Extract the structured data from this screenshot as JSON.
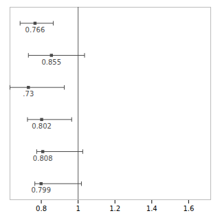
{
  "chart_data": {
    "type": "forest",
    "values": [
      0.766,
      0.855,
      0.73,
      0.802,
      0.808,
      0.799
    ],
    "ci_low": [
      0.685,
      0.73,
      0.63,
      0.725,
      0.775,
      0.765
    ],
    "ci_high": [
      0.865,
      1.035,
      0.925,
      0.965,
      1.025,
      1.018
    ],
    "data_labels": true,
    "value_labels": [
      "0.766",
      "0.855",
      ".73",
      "0.802",
      "0.808",
      "0.799"
    ],
    "reference_x": 1.0,
    "color": "#4a4a4a",
    "xlim": [
      0.63,
      1.72
    ],
    "xticks": [
      0.8,
      1.0,
      1.2,
      1.4,
      1.6
    ],
    "tick_labels": "x",
    "grid": false
  }
}
